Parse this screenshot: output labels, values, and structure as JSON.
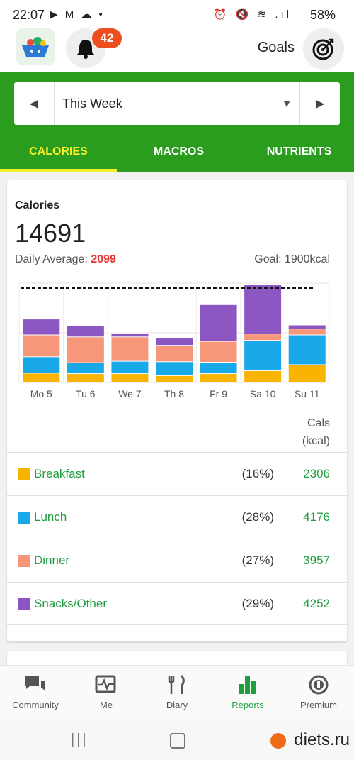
{
  "status_bar": {
    "time": "22:07",
    "left_icons": "▶ M ☁ •",
    "right_icons": "⏰ 🔇 ≋ .ıl",
    "battery": "58%"
  },
  "header": {
    "notification_count": "42",
    "goals_label": "Goals"
  },
  "period": {
    "label": "This Week"
  },
  "tabs": [
    {
      "label": "CALORIES"
    },
    {
      "label": "MACROS"
    },
    {
      "label": "NUTRIENTS"
    }
  ],
  "summary": {
    "title": "Calories",
    "total": "14691",
    "avg_label": "Daily Average:",
    "avg_value": "2099",
    "goal": "Goal: 1900kcal"
  },
  "chart_data": {
    "type": "bar",
    "stacked": true,
    "categories": [
      "Mo 5",
      "Tu 6",
      "We 7",
      "Th 8",
      "Fr 9",
      "Sa 10",
      "Su 11"
    ],
    "series": [
      {
        "name": "Breakfast",
        "color": "#f8b400",
        "values": [
          180,
          170,
          170,
          130,
          170,
          230,
          350
        ]
      },
      {
        "name": "Lunch",
        "color": "#1aa9e8",
        "values": [
          330,
          220,
          250,
          280,
          230,
          610,
          600
        ]
      },
      {
        "name": "Dinner",
        "color": "#f7977a",
        "values": [
          440,
          520,
          490,
          330,
          420,
          130,
          120
        ]
      },
      {
        "name": "Snacks/Other",
        "color": "#8d57c3",
        "values": [
          320,
          230,
          70,
          150,
          740,
          990,
          80
        ]
      }
    ],
    "goal_line": 1900,
    "ylim": [
      0,
      2000
    ],
    "grid": true
  },
  "cals_header": {
    "line1": "Cals",
    "line2": "(kcal)"
  },
  "breakdown": [
    {
      "name": "Breakfast",
      "pct": "(16%)",
      "cals": "2306",
      "color": "#f8b400"
    },
    {
      "name": "Lunch",
      "pct": "(28%)",
      "cals": "4176",
      "color": "#1aa9e8"
    },
    {
      "name": "Dinner",
      "pct": "(27%)",
      "cals": "3957",
      "color": "#f7977a"
    },
    {
      "name": "Snacks/Other",
      "pct": "(29%)",
      "cals": "4252",
      "color": "#8d57c3"
    }
  ],
  "nav": [
    {
      "label": "Community",
      "icon": "chat-icon"
    },
    {
      "label": "Me",
      "icon": "heart-pulse-icon"
    },
    {
      "label": "Diary",
      "icon": "fork-knife-icon"
    },
    {
      "label": "Reports",
      "icon": "bar-chart-icon"
    },
    {
      "label": "Premium",
      "icon": "premium-badge-icon"
    }
  ],
  "watermark": "diets.ru"
}
